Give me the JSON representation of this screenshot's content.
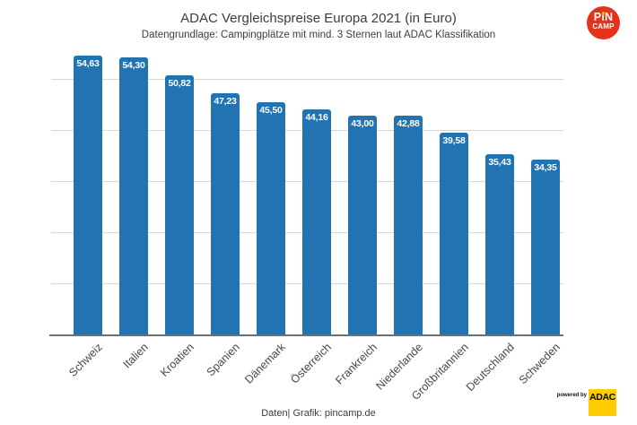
{
  "header": {
    "title": "ADAC Vergleichspreise Europa 2021 (in Euro)",
    "subtitle": "Datengrundlage: Campingplätze mit mind. 3 Sternen laut ADAC Klassifikation"
  },
  "chart_data": {
    "type": "bar",
    "title": "ADAC Vergleichspreise Europa 2021 (in Euro)",
    "subtitle": "Datengrundlage: Campingplätze mit mind. 3 Sternen laut ADAC Klassifikation",
    "categories": [
      "Schweiz",
      "Italien",
      "Kroatien",
      "Spanien",
      "Dänemark",
      "Österreich",
      "Frankreich",
      "Niederlande",
      "Großbritannien",
      "Deutschland",
      "Schweden"
    ],
    "values": [
      54.63,
      54.3,
      50.82,
      47.23,
      45.5,
      44.16,
      43.0,
      42.88,
      39.58,
      35.43,
      34.35
    ],
    "value_labels": [
      "54,63",
      "54,30",
      "50,82",
      "47,23",
      "45,50",
      "44,16",
      "43,00",
      "42,88",
      "39,58",
      "35,43",
      "34,35"
    ],
    "xlabel": "",
    "ylabel": "",
    "ylim": [
      0,
      55.7
    ],
    "gridlines": [
      10,
      20,
      30,
      40,
      50
    ],
    "grid": true,
    "legend": false,
    "bar_color": "#2173b2"
  },
  "footer": {
    "credit": "Daten| Grafik: pincamp.de"
  },
  "logos": {
    "pincamp": {
      "line1": "PiN",
      "line2": "CAMP",
      "bg_color": "#e5321c",
      "dot_color": "#f9b000"
    },
    "adac": {
      "powered_by": "powered by",
      "name": "ADAC",
      "bg_color": "#ffcc00"
    }
  }
}
